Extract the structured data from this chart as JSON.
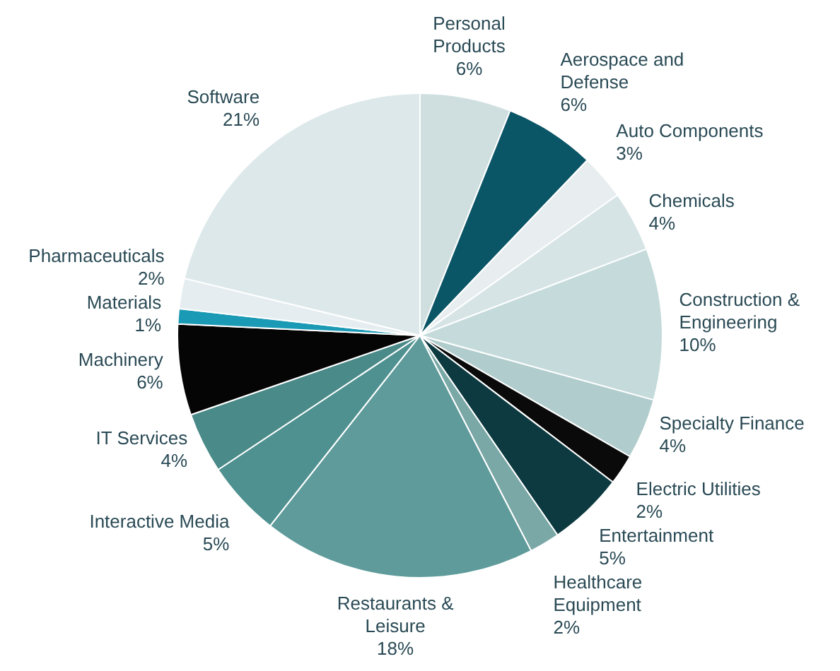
{
  "chart_data": {
    "type": "pie",
    "categories": [
      "Personal Products",
      "Aerospace and Defense",
      "Auto Components",
      "Chemicals",
      "Construction & Engineering",
      "Specialty Finance",
      "Electric Utilities",
      "Entertainment",
      "Healthcare Equipment",
      "Restaurants & Leisure",
      "Interactive Media",
      "IT Services",
      "Machinery",
      "Materials",
      "Pharmaceuticals",
      "Software"
    ],
    "values": [
      6,
      6,
      3,
      4,
      10,
      4,
      2,
      5,
      2,
      18,
      5,
      4,
      6,
      1,
      2,
      21
    ],
    "value_labels": [
      "6%",
      "6%",
      "3%",
      "4%",
      "10%",
      "4%",
      "2%",
      "5%",
      "2%",
      "18%",
      "5%",
      "4%",
      "6%",
      "1%",
      "2%",
      "21%"
    ],
    "colors": [
      "#cfdfe0",
      "#0a5566",
      "#e8eef0",
      "#d6e4e6",
      "#c5dadb",
      "#b0cccc",
      "#0a0a0a",
      "#0c3a40",
      "#7aa8a6",
      "#5f9b9b",
      "#4f9190",
      "#4a8a88",
      "#050505",
      "#1b9ab5",
      "#e6edf0",
      "#dde8ea"
    ],
    "legend": false
  }
}
